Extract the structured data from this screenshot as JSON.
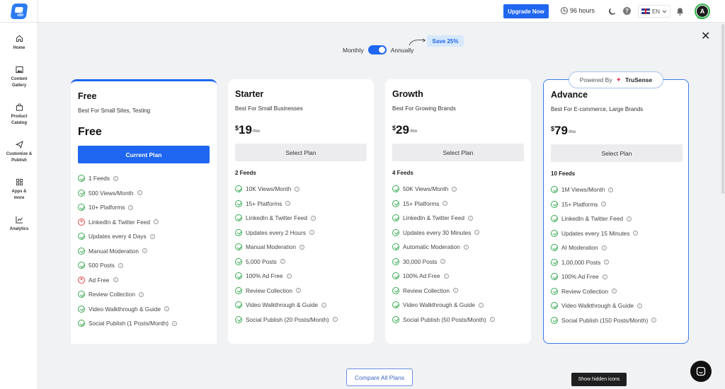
{
  "topbar": {
    "upgrade_label": "Upgrade Now",
    "hours_text": "96 hours",
    "language": "EN",
    "avatar_initial": "A",
    "avatar_progress": "40%"
  },
  "sidebar": {
    "items": [
      {
        "label": "Home",
        "icon": "home-icon"
      },
      {
        "label": "Content Gallery",
        "icon": "image-icon"
      },
      {
        "label": "Product Catalog",
        "icon": "bag-icon"
      },
      {
        "label": "Customize & Publish",
        "icon": "send-icon"
      },
      {
        "label": "Apps & more",
        "icon": "grid-icon"
      },
      {
        "label": "Analytics",
        "icon": "chart-icon"
      }
    ]
  },
  "billing": {
    "monthly_label": "Monthly",
    "annually_label": "Annually",
    "annual_selected": true,
    "save_badge": "Save 25%"
  },
  "powered_by": {
    "prefix": "Powered By",
    "brand": "TruSense"
  },
  "plans": [
    {
      "name": "Free",
      "subtitle": "Best For Small Sites, Testing",
      "price_text": "Free",
      "button_label": "Current Plan",
      "features": [
        {
          "text": "1 Feeds",
          "ok": true
        },
        {
          "text": "500 Views/Month",
          "ok": true
        },
        {
          "text": "10+ Platforms",
          "ok": true
        },
        {
          "text": "LinkedIn & Twitter Feed",
          "ok": false
        },
        {
          "text": "Updates every 4 Days",
          "ok": true
        },
        {
          "text": "Manual Moderation",
          "ok": true
        },
        {
          "text": "500 Posts",
          "ok": true
        },
        {
          "text": "Ad Free",
          "ok": false
        },
        {
          "text": "Review Collection",
          "ok": true
        },
        {
          "text": "Video Walkthrough & Guide",
          "ok": true
        },
        {
          "text": "Social Publish (1 Posts/Month)",
          "ok": true
        }
      ]
    },
    {
      "name": "Starter",
      "subtitle": "Best For Small Businesses",
      "currency": "$",
      "price": "19",
      "per": "/mo",
      "button_label": "Select Plan",
      "feeds": "2 Feeds",
      "features": [
        {
          "text": "10K Views/Month",
          "ok": true
        },
        {
          "text": "15+ Platforms",
          "ok": true
        },
        {
          "text": "LinkedIn & Twitter Feed",
          "ok": true
        },
        {
          "text": "Updates every 2 Hours",
          "ok": true
        },
        {
          "text": "Manual Moderation",
          "ok": true
        },
        {
          "text": "5,000 Posts",
          "ok": true
        },
        {
          "text": "100% Ad Free",
          "ok": true
        },
        {
          "text": "Review Collection",
          "ok": true
        },
        {
          "text": "Video Walkthrough & Guide",
          "ok": true
        },
        {
          "text": "Social Publish (20 Posts/Month)",
          "ok": true
        }
      ]
    },
    {
      "name": "Growth",
      "subtitle": "Best For Growing Brands",
      "currency": "$",
      "price": "29",
      "per": "/mo",
      "button_label": "Select Plan",
      "feeds": "4 Feeds",
      "features": [
        {
          "text": "50K Views/Month",
          "ok": true
        },
        {
          "text": "15+ Platforms",
          "ok": true
        },
        {
          "text": "LinkedIn & Twitter Feed",
          "ok": true
        },
        {
          "text": "Updates every 30 Minutes",
          "ok": true
        },
        {
          "text": "Automatic Moderation",
          "ok": true
        },
        {
          "text": "30,000 Posts",
          "ok": true
        },
        {
          "text": "100% Ad Free",
          "ok": true
        },
        {
          "text": "Review Collection",
          "ok": true
        },
        {
          "text": "Video Walkthrough & Guide",
          "ok": true
        },
        {
          "text": "Social Publish (50 Posts/Month)",
          "ok": true
        }
      ]
    },
    {
      "name": "Advance",
      "subtitle": "Best For E-commerce, Large Brands",
      "currency": "$",
      "price": "79",
      "per": "/mo",
      "button_label": "Select Plan",
      "feeds": "10 Feeds",
      "features": [
        {
          "text": "1M Views/Month",
          "ok": true
        },
        {
          "text": "15+ Platforms",
          "ok": true
        },
        {
          "text": "LinkedIn & Twitter Feed",
          "ok": true
        },
        {
          "text": "Updates every 15 Minutes",
          "ok": true
        },
        {
          "text": "AI Moderation",
          "ok": true
        },
        {
          "text": "1,00,000 Posts",
          "ok": true
        },
        {
          "text": "100% Ad Free",
          "ok": true
        },
        {
          "text": "Review Collection",
          "ok": true
        },
        {
          "text": "Video Walkthrough & Guide",
          "ok": true
        },
        {
          "text": "Social Publish (150 Posts/Month)",
          "ok": true
        }
      ]
    }
  ],
  "compare_label": "Compare All Plans",
  "tooltip": "Show hidden icons",
  "colors": {
    "accent": "#1f66f0",
    "check": "#3aaa55",
    "cross": "#e04848"
  }
}
